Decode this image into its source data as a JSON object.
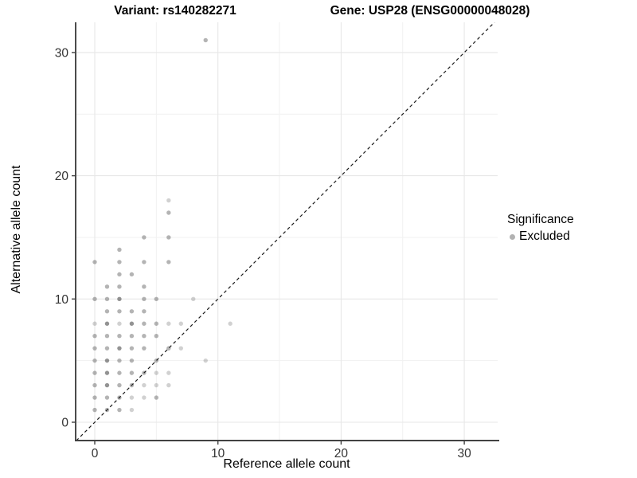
{
  "titles": {
    "left": "Variant: rs140282271",
    "right": "Gene: USP28 (ENSG00000048028)"
  },
  "legend": {
    "title": "Significance",
    "items": [
      {
        "label": "Excluded",
        "color": "#b2b2b2"
      }
    ]
  },
  "chart_data": {
    "type": "scatter",
    "title_left": "Variant: rs140282271",
    "title_right": "Gene: USP28 (ENSG00000048028)",
    "xlabel": "Reference allele count",
    "ylabel": "Alternative allele count",
    "x_ticks": [
      0,
      10,
      20,
      30
    ],
    "y_ticks": [
      0,
      10,
      20,
      30
    ],
    "x_minor_ticks": [
      5,
      15,
      25
    ],
    "y_minor_ticks": [
      5,
      15,
      25
    ],
    "xlim": [
      -1.55,
      32.7
    ],
    "ylim": [
      -1.5,
      32.45
    ],
    "grid": true,
    "legend_position": "right",
    "identity_line": {
      "style": "dashed",
      "equation": "y = x",
      "from": [
        -1.5,
        -1.5
      ],
      "to": [
        32.45,
        32.45
      ],
      "color": "#1a1a1a"
    },
    "point_color": "#595959",
    "opacity_levels": {
      "1": 0.28,
      "2": 0.45,
      "3": 0.65
    },
    "series": [
      {
        "name": "Excluded",
        "points": [
          [
            0,
            1,
            2
          ],
          [
            1,
            1,
            2
          ],
          [
            2,
            1,
            2
          ],
          [
            3,
            1,
            1
          ],
          [
            0,
            2,
            2
          ],
          [
            1,
            2,
            2
          ],
          [
            2,
            2,
            2
          ],
          [
            3,
            2,
            1
          ],
          [
            4,
            2,
            1
          ],
          [
            5,
            2,
            2
          ],
          [
            0,
            3,
            2
          ],
          [
            1,
            3,
            3
          ],
          [
            2,
            3,
            2
          ],
          [
            3,
            3,
            2
          ],
          [
            4,
            3,
            1
          ],
          [
            5,
            3,
            1
          ],
          [
            6,
            3,
            1
          ],
          [
            0,
            4,
            2
          ],
          [
            1,
            4,
            3
          ],
          [
            2,
            4,
            2
          ],
          [
            3,
            4,
            2
          ],
          [
            4,
            4,
            2
          ],
          [
            5,
            4,
            1
          ],
          [
            6,
            4,
            1
          ],
          [
            0,
            5,
            2
          ],
          [
            1,
            5,
            3
          ],
          [
            2,
            5,
            2
          ],
          [
            3,
            5,
            2
          ],
          [
            5,
            5,
            2
          ],
          [
            9,
            5,
            1
          ],
          [
            0,
            6,
            2
          ],
          [
            1,
            6,
            2
          ],
          [
            2,
            6,
            3
          ],
          [
            3,
            6,
            2
          ],
          [
            4,
            6,
            2
          ],
          [
            6,
            6,
            2
          ],
          [
            7,
            6,
            1
          ],
          [
            0,
            7,
            2
          ],
          [
            1,
            7,
            2
          ],
          [
            2,
            7,
            2
          ],
          [
            3,
            7,
            2
          ],
          [
            4,
            7,
            2
          ],
          [
            5,
            7,
            2
          ],
          [
            0,
            8,
            1
          ],
          [
            1,
            8,
            3
          ],
          [
            2,
            8,
            1
          ],
          [
            3,
            8,
            3
          ],
          [
            4,
            8,
            2
          ],
          [
            5,
            8,
            2
          ],
          [
            6,
            8,
            1
          ],
          [
            7,
            8,
            1
          ],
          [
            11,
            8,
            1
          ],
          [
            1,
            9,
            2
          ],
          [
            2,
            9,
            2
          ],
          [
            3,
            9,
            2
          ],
          [
            4,
            9,
            2
          ],
          [
            0,
            10,
            2
          ],
          [
            1,
            10,
            2
          ],
          [
            2,
            10,
            3
          ],
          [
            4,
            10,
            2
          ],
          [
            5,
            10,
            2
          ],
          [
            8,
            10,
            1
          ],
          [
            1,
            11,
            2
          ],
          [
            2,
            11,
            2
          ],
          [
            4,
            11,
            2
          ],
          [
            2,
            12,
            2
          ],
          [
            3,
            12,
            2
          ],
          [
            0,
            13,
            2
          ],
          [
            2,
            13,
            2
          ],
          [
            4,
            13,
            2
          ],
          [
            6,
            13,
            2
          ],
          [
            2,
            14,
            2
          ],
          [
            4,
            15,
            2
          ],
          [
            6,
            15,
            2
          ],
          [
            6,
            17,
            2
          ],
          [
            6,
            18,
            1
          ],
          [
            9,
            31,
            2
          ]
        ]
      }
    ]
  },
  "style_colors": {
    "grid_major": "#e7e7e7",
    "grid_minor": "#f1f1f1",
    "axis_line": "#424242",
    "tick_label": "#333333"
  }
}
